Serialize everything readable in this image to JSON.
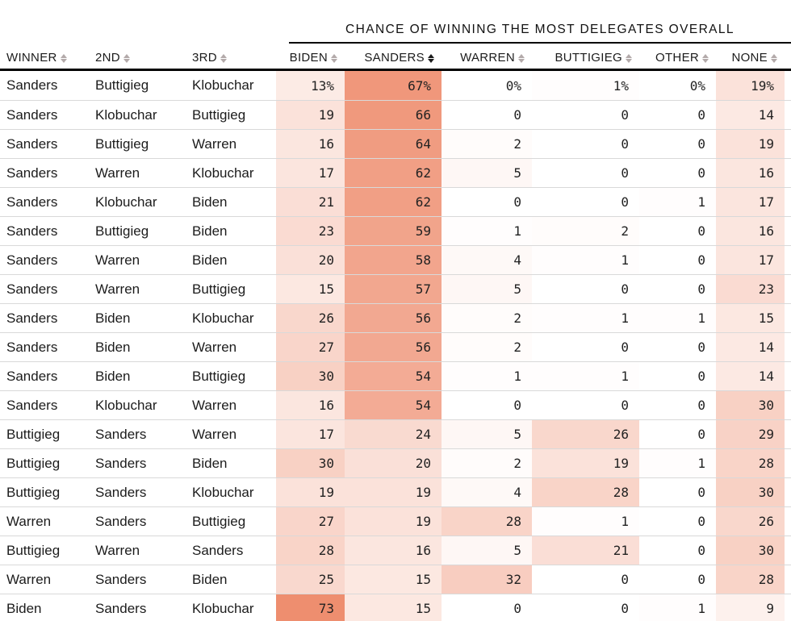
{
  "chart_data": {
    "type": "table",
    "title": "CHANCE OF WINNING THE MOST DELEGATES OVERALL",
    "columns": [
      {
        "label": "WINNER",
        "kind": "name"
      },
      {
        "label": "2ND",
        "kind": "name"
      },
      {
        "label": "3RD",
        "kind": "name"
      },
      {
        "label": "BIDEN",
        "kind": "num"
      },
      {
        "label": "SANDERS",
        "kind": "num"
      },
      {
        "label": "WARREN",
        "kind": "num"
      },
      {
        "label": "BUTTIGIEG",
        "kind": "num"
      },
      {
        "label": "OTHER",
        "kind": "num"
      },
      {
        "label": "NONE",
        "kind": "num"
      }
    ],
    "sorted_column": "SANDERS",
    "sort_direction": "desc",
    "heatmap_scale": {
      "min_value": 0,
      "max_value": 100,
      "min_color": "#ffffff",
      "max_color": "#e8643a"
    },
    "rows": [
      {
        "winner": "Sanders",
        "second": "Buttigieg",
        "third": "Klobuchar",
        "values": [
          "13%",
          "67%",
          "0%",
          "1%",
          "0%",
          "19%"
        ]
      },
      {
        "winner": "Sanders",
        "second": "Klobuchar",
        "third": "Buttigieg",
        "values": [
          "19",
          "66",
          "0",
          "0",
          "0",
          "14"
        ]
      },
      {
        "winner": "Sanders",
        "second": "Buttigieg",
        "third": "Warren",
        "values": [
          "16",
          "64",
          "2",
          "0",
          "0",
          "19"
        ]
      },
      {
        "winner": "Sanders",
        "second": "Warren",
        "third": "Klobuchar",
        "values": [
          "17",
          "62",
          "5",
          "0",
          "0",
          "16"
        ]
      },
      {
        "winner": "Sanders",
        "second": "Klobuchar",
        "third": "Biden",
        "values": [
          "21",
          "62",
          "0",
          "0",
          "1",
          "17"
        ]
      },
      {
        "winner": "Sanders",
        "second": "Buttigieg",
        "third": "Biden",
        "values": [
          "23",
          "59",
          "1",
          "2",
          "0",
          "16"
        ]
      },
      {
        "winner": "Sanders",
        "second": "Warren",
        "third": "Biden",
        "values": [
          "20",
          "58",
          "4",
          "1",
          "0",
          "17"
        ]
      },
      {
        "winner": "Sanders",
        "second": "Warren",
        "third": "Buttigieg",
        "values": [
          "15",
          "57",
          "5",
          "0",
          "0",
          "23"
        ]
      },
      {
        "winner": "Sanders",
        "second": "Biden",
        "third": "Klobuchar",
        "values": [
          "26",
          "56",
          "2",
          "1",
          "1",
          "15"
        ]
      },
      {
        "winner": "Sanders",
        "second": "Biden",
        "third": "Warren",
        "values": [
          "27",
          "56",
          "2",
          "0",
          "0",
          "14"
        ]
      },
      {
        "winner": "Sanders",
        "second": "Biden",
        "third": "Buttigieg",
        "values": [
          "30",
          "54",
          "1",
          "1",
          "0",
          "14"
        ]
      },
      {
        "winner": "Sanders",
        "second": "Klobuchar",
        "third": "Warren",
        "values": [
          "16",
          "54",
          "0",
          "0",
          "0",
          "30"
        ]
      },
      {
        "winner": "Buttigieg",
        "second": "Sanders",
        "third": "Warren",
        "values": [
          "17",
          "24",
          "5",
          "26",
          "0",
          "29"
        ]
      },
      {
        "winner": "Buttigieg",
        "second": "Sanders",
        "third": "Biden",
        "values": [
          "30",
          "20",
          "2",
          "19",
          "1",
          "28"
        ]
      },
      {
        "winner": "Buttigieg",
        "second": "Sanders",
        "third": "Klobuchar",
        "values": [
          "19",
          "19",
          "4",
          "28",
          "0",
          "30"
        ]
      },
      {
        "winner": "Warren",
        "second": "Sanders",
        "third": "Buttigieg",
        "values": [
          "27",
          "19",
          "28",
          "1",
          "0",
          "26"
        ]
      },
      {
        "winner": "Buttigieg",
        "second": "Warren",
        "third": "Sanders",
        "values": [
          "28",
          "16",
          "5",
          "21",
          "0",
          "30"
        ]
      },
      {
        "winner": "Warren",
        "second": "Sanders",
        "third": "Biden",
        "values": [
          "25",
          "15",
          "32",
          "0",
          "0",
          "28"
        ]
      },
      {
        "winner": "Biden",
        "second": "Sanders",
        "third": "Klobuchar",
        "values": [
          "73",
          "15",
          "0",
          "0",
          "1",
          "9"
        ]
      }
    ]
  },
  "colors": {
    "active_sort": "#1a1a1a",
    "inactive_sort": "#b3aaaa",
    "divider": "#d9d9d9",
    "header_line": "#000000"
  }
}
